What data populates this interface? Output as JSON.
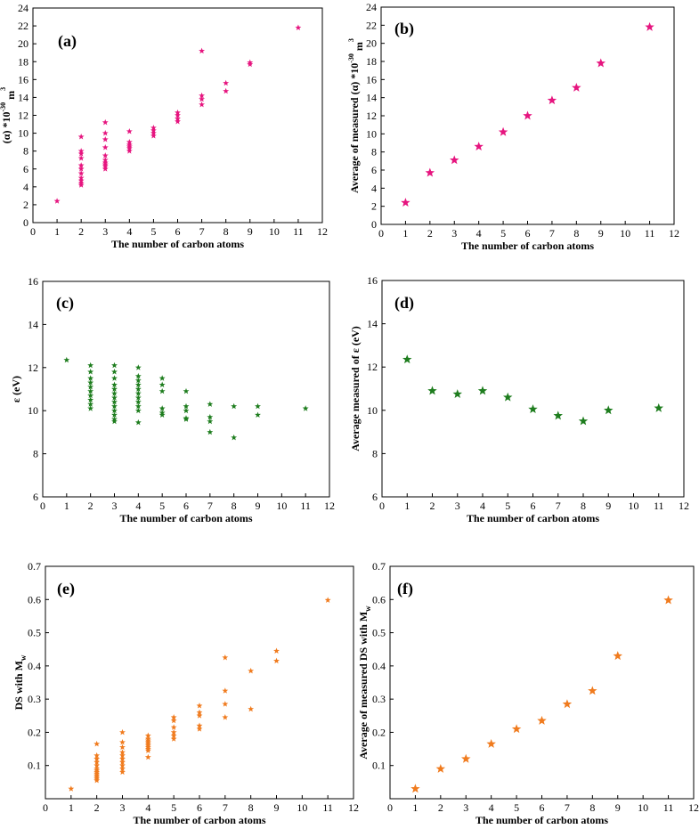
{
  "colors": {
    "pink": "#e6157f",
    "green": "#1e7d1e",
    "orange": "#f07b1e",
    "axis": "#000000"
  },
  "chart_data": [
    {
      "id": "a",
      "type": "scatter",
      "marker": "star",
      "color": "#e6157f",
      "panel_label": "(a)",
      "xlabel": "The number of carbon atoms",
      "ylabel_parts": [
        "(α) *10",
        "-30",
        " m",
        "3"
      ],
      "xlim": [
        0,
        12
      ],
      "ylim": [
        0,
        24
      ],
      "xticks": [
        0,
        1,
        2,
        3,
        4,
        5,
        6,
        7,
        8,
        9,
        10,
        11,
        12
      ],
      "yticks": [
        0,
        2,
        4,
        6,
        8,
        10,
        12,
        14,
        16,
        18,
        20,
        22,
        24
      ],
      "points": [
        [
          1,
          2.4
        ],
        [
          2,
          9.6
        ],
        [
          2,
          8.0
        ],
        [
          2,
          7.7
        ],
        [
          2,
          7.2
        ],
        [
          2,
          6.4
        ],
        [
          2,
          6.0
        ],
        [
          2,
          5.5
        ],
        [
          2,
          5.0
        ],
        [
          2,
          4.7
        ],
        [
          2,
          4.4
        ],
        [
          2,
          4.2
        ],
        [
          3,
          11.2
        ],
        [
          3,
          10.0
        ],
        [
          3,
          9.3
        ],
        [
          3,
          8.4
        ],
        [
          3,
          7.5
        ],
        [
          3,
          7.0
        ],
        [
          3,
          6.7
        ],
        [
          3,
          6.5
        ],
        [
          3,
          6.3
        ],
        [
          3,
          6.0
        ],
        [
          4,
          10.2
        ],
        [
          4,
          9.0
        ],
        [
          4,
          8.7
        ],
        [
          4,
          8.5
        ],
        [
          4,
          8.3
        ],
        [
          4,
          8.0
        ],
        [
          5,
          10.6
        ],
        [
          5,
          10.3
        ],
        [
          5,
          10.0
        ],
        [
          5,
          9.7
        ],
        [
          6,
          12.3
        ],
        [
          6,
          12.0
        ],
        [
          6,
          11.6
        ],
        [
          6,
          11.3
        ],
        [
          7,
          19.2
        ],
        [
          7,
          14.2
        ],
        [
          7,
          13.8
        ],
        [
          7,
          13.2
        ],
        [
          8,
          15.6
        ],
        [
          8,
          14.7
        ],
        [
          9,
          17.9
        ],
        [
          9,
          17.7
        ],
        [
          11,
          21.8
        ]
      ]
    },
    {
      "id": "b",
      "type": "scatter",
      "marker": "star",
      "color": "#e6157f",
      "panel_label": "(b)",
      "xlabel": "The number of carbon atoms",
      "ylabel_parts": [
        "Average of measured (α) *10",
        "-30",
        " m",
        "3"
      ],
      "xlim": [
        0,
        12
      ],
      "ylim": [
        0,
        24
      ],
      "xticks": [
        0,
        1,
        2,
        3,
        4,
        5,
        6,
        7,
        8,
        9,
        10,
        11,
        12
      ],
      "yticks": [
        0,
        2,
        4,
        6,
        8,
        10,
        12,
        14,
        16,
        18,
        20,
        22,
        24
      ],
      "points": [
        [
          1,
          2.4
        ],
        [
          2,
          5.7
        ],
        [
          3,
          7.1
        ],
        [
          4,
          8.6
        ],
        [
          5,
          10.2
        ],
        [
          6,
          12.0
        ],
        [
          7,
          13.7
        ],
        [
          8,
          15.1
        ],
        [
          9,
          17.8
        ],
        [
          11,
          21.8
        ]
      ]
    },
    {
      "id": "c",
      "type": "scatter",
      "marker": "star",
      "color": "#1e7d1e",
      "panel_label": "(c)",
      "xlabel": "The number of carbon atoms",
      "ylabel_parts": [
        "ε (eV)"
      ],
      "xlim": [
        0,
        12
      ],
      "ylim": [
        6,
        16
      ],
      "xticks": [
        0,
        1,
        2,
        3,
        4,
        5,
        6,
        7,
        8,
        9,
        10,
        11,
        12
      ],
      "yticks": [
        6,
        8,
        10,
        12,
        14,
        16
      ],
      "points": [
        [
          1,
          12.35
        ],
        [
          2,
          12.1
        ],
        [
          2,
          11.8
        ],
        [
          2,
          11.5
        ],
        [
          2,
          11.3
        ],
        [
          2,
          11.1
        ],
        [
          2,
          10.9
        ],
        [
          2,
          10.7
        ],
        [
          2,
          10.5
        ],
        [
          2,
          10.3
        ],
        [
          2,
          10.1
        ],
        [
          3,
          12.1
        ],
        [
          3,
          11.8
        ],
        [
          3,
          11.5
        ],
        [
          3,
          11.2
        ],
        [
          3,
          11.0
        ],
        [
          3,
          10.8
        ],
        [
          3,
          10.6
        ],
        [
          3,
          10.4
        ],
        [
          3,
          10.2
        ],
        [
          3,
          10.0
        ],
        [
          3,
          9.8
        ],
        [
          3,
          9.6
        ],
        [
          3,
          9.5
        ],
        [
          4,
          12.0
        ],
        [
          4,
          11.6
        ],
        [
          4,
          11.4
        ],
        [
          4,
          11.2
        ],
        [
          4,
          11.0
        ],
        [
          4,
          10.8
        ],
        [
          4,
          10.6
        ],
        [
          4,
          10.4
        ],
        [
          4,
          10.2
        ],
        [
          4,
          10.0
        ],
        [
          4,
          9.45
        ],
        [
          5,
          11.5
        ],
        [
          5,
          11.2
        ],
        [
          5,
          10.9
        ],
        [
          5,
          10.1
        ],
        [
          5,
          9.9
        ],
        [
          5,
          9.8
        ],
        [
          6,
          10.9
        ],
        [
          6,
          10.2
        ],
        [
          6,
          10.0
        ],
        [
          6,
          9.65
        ],
        [
          6,
          9.6
        ],
        [
          7,
          10.3
        ],
        [
          7,
          9.7
        ],
        [
          7,
          9.5
        ],
        [
          7,
          9.0
        ],
        [
          8,
          10.2
        ],
        [
          8,
          8.75
        ],
        [
          9,
          10.2
        ],
        [
          9,
          9.8
        ],
        [
          11,
          10.1
        ]
      ]
    },
    {
      "id": "d",
      "type": "scatter",
      "marker": "star",
      "color": "#1e7d1e",
      "panel_label": "(d)",
      "xlabel": "The number of carbon atoms",
      "ylabel_parts": [
        "Average measured of ε (eV)"
      ],
      "xlim": [
        0,
        12
      ],
      "ylim": [
        6,
        16
      ],
      "xticks": [
        0,
        1,
        2,
        3,
        4,
        5,
        6,
        7,
        8,
        9,
        10,
        11,
        12
      ],
      "yticks": [
        6,
        8,
        10,
        12,
        14,
        16
      ],
      "points": [
        [
          1,
          12.35
        ],
        [
          2,
          10.9
        ],
        [
          3,
          10.75
        ],
        [
          4,
          10.9
        ],
        [
          5,
          10.6
        ],
        [
          6,
          10.05
        ],
        [
          7,
          9.75
        ],
        [
          8,
          9.5
        ],
        [
          9,
          10.0
        ],
        [
          11,
          10.1
        ]
      ]
    },
    {
      "id": "e",
      "type": "scatter",
      "marker": "star",
      "color": "#f07b1e",
      "panel_label": "(e)",
      "xlabel": "The number of carbon atoms",
      "ylabel_parts": [
        "DS with M",
        "w"
      ],
      "xlim": [
        0,
        12
      ],
      "ylim": [
        0,
        0.7
      ],
      "xticks": [
        0,
        1,
        2,
        3,
        4,
        5,
        6,
        7,
        8,
        9,
        10,
        11,
        12
      ],
      "yticks": [
        0.1,
        0.2,
        0.3,
        0.4,
        0.5,
        0.6,
        0.7
      ],
      "points": [
        [
          1,
          0.03
        ],
        [
          2,
          0.165
        ],
        [
          2,
          0.13
        ],
        [
          2,
          0.12
        ],
        [
          2,
          0.11
        ],
        [
          2,
          0.1
        ],
        [
          2,
          0.09
        ],
        [
          2,
          0.085
        ],
        [
          2,
          0.08
        ],
        [
          2,
          0.075
        ],
        [
          2,
          0.07
        ],
        [
          2,
          0.065
        ],
        [
          2,
          0.06
        ],
        [
          2,
          0.055
        ],
        [
          3,
          0.2
        ],
        [
          3,
          0.17
        ],
        [
          3,
          0.155
        ],
        [
          3,
          0.14
        ],
        [
          3,
          0.13
        ],
        [
          3,
          0.12
        ],
        [
          3,
          0.11
        ],
        [
          3,
          0.1
        ],
        [
          3,
          0.09
        ],
        [
          3,
          0.08
        ],
        [
          4,
          0.19
        ],
        [
          4,
          0.18
        ],
        [
          4,
          0.175
        ],
        [
          4,
          0.17
        ],
        [
          4,
          0.165
        ],
        [
          4,
          0.16
        ],
        [
          4,
          0.155
        ],
        [
          4,
          0.15
        ],
        [
          4,
          0.145
        ],
        [
          4,
          0.125
        ],
        [
          5,
          0.245
        ],
        [
          5,
          0.235
        ],
        [
          5,
          0.215
        ],
        [
          5,
          0.2
        ],
        [
          5,
          0.19
        ],
        [
          5,
          0.18
        ],
        [
          6,
          0.28
        ],
        [
          6,
          0.26
        ],
        [
          6,
          0.25
        ],
        [
          6,
          0.22
        ],
        [
          6,
          0.21
        ],
        [
          7,
          0.425
        ],
        [
          7,
          0.325
        ],
        [
          7,
          0.285
        ],
        [
          7,
          0.245
        ],
        [
          8,
          0.385
        ],
        [
          8,
          0.27
        ],
        [
          9,
          0.445
        ],
        [
          9,
          0.415
        ],
        [
          11,
          0.598
        ]
      ]
    },
    {
      "id": "f",
      "type": "scatter",
      "marker": "star",
      "color": "#f07b1e",
      "panel_label": "(f)",
      "xlabel": "The number of carbon atoms",
      "ylabel_parts": [
        "Average of measured DS with M",
        "w"
      ],
      "xlim": [
        0,
        12
      ],
      "ylim": [
        0,
        0.7
      ],
      "xticks": [
        0,
        1,
        2,
        3,
        4,
        5,
        6,
        7,
        8,
        9,
        10,
        11,
        12
      ],
      "yticks": [
        0.1,
        0.2,
        0.3,
        0.4,
        0.5,
        0.6,
        0.7
      ],
      "points": [
        [
          1,
          0.03
        ],
        [
          2,
          0.09
        ],
        [
          3,
          0.12
        ],
        [
          4,
          0.165
        ],
        [
          5,
          0.21
        ],
        [
          6,
          0.235
        ],
        [
          7,
          0.285
        ],
        [
          8,
          0.325
        ],
        [
          9,
          0.43
        ],
        [
          11,
          0.598
        ]
      ]
    }
  ]
}
